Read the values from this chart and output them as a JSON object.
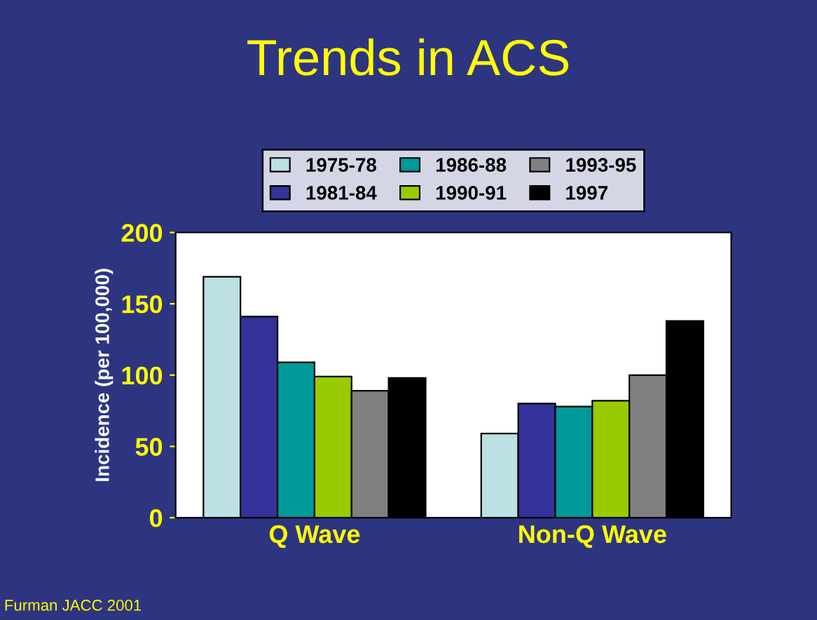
{
  "chart_data": {
    "type": "bar",
    "title": "Trends in ACS",
    "ylabel": "Incidence (per 100,000)",
    "categories": [
      "Q Wave",
      "Non-Q Wave"
    ],
    "series": [
      {
        "name": "1975-78",
        "color": "#bce0e3",
        "values": [
          169,
          59
        ]
      },
      {
        "name": "1981-84",
        "color": "#333399",
        "values": [
          141,
          80
        ]
      },
      {
        "name": "1986-88",
        "color": "#009999",
        "values": [
          109,
          78
        ]
      },
      {
        "name": "1990-91",
        "color": "#99cc00",
        "values": [
          99,
          82
        ]
      },
      {
        "name": "1993-95",
        "color": "#808080",
        "values": [
          89,
          100
        ]
      },
      {
        "name": "1997",
        "color": "#000000",
        "values": [
          98,
          138
        ]
      }
    ],
    "ylim": [
      0,
      200
    ],
    "yticks": [
      0,
      50,
      100,
      150,
      200
    ],
    "grid": false,
    "legend": "top",
    "annotations": [
      "Furman JACC 2001"
    ]
  }
}
